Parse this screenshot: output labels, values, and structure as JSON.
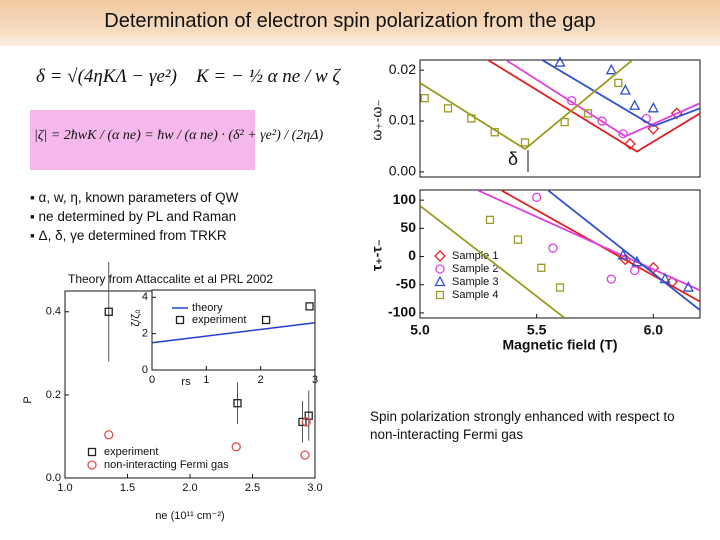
{
  "header": {
    "title": "Determination of electron spin polarization from the gap"
  },
  "formulas": [
    "δ = √(4ηKΛ − γe²)",
    "K = − ½ α ne / w ζ",
    "|ζ| = 2ħwK / (α ne) = ħw / (α ne) · (δ² + γe²) / (2ηΔ)"
  ],
  "bullets": [
    "α, w, η, known parameters of QW",
    "ne determined by PL and Raman",
    "Δ, δ, γe determined from TRKR"
  ],
  "theory_note": "Theory from Attaccalite et al PRL 2002",
  "caption": "Spin polarization strongly enhanced with respect to non-interacting Fermi gas",
  "annotation": "δ",
  "chart_data": [
    {
      "type": "scatter",
      "xlabel": "ne (10¹¹ cm⁻²)",
      "ylabel": "P",
      "xlim": [
        1.0,
        3.0
      ],
      "ylim": [
        0,
        0.45
      ],
      "xticks": [
        {
          "value": 1,
          "label": "1.0"
        },
        {
          "value": 1.5,
          "label": "1.5"
        },
        {
          "value": 2,
          "label": "2.0"
        },
        {
          "value": 2.5,
          "label": "2.5"
        },
        {
          "value": 3,
          "label": "3.0"
        }
      ],
      "yticks": [
        {
          "value": 0,
          "label": "0.0"
        },
        0.2,
        0.4
      ],
      "series": [
        {
          "name": "experiment",
          "color": "#222222",
          "marker": "square",
          "x": [
            1.35,
            2.38,
            2.95,
            2.9
          ],
          "values": [
            0.4,
            0.18,
            0.15,
            0.135
          ],
          "errors": [
            0.12,
            0.05,
            0.06,
            0.05
          ]
        },
        {
          "name": "non-interacting Fermi gas",
          "color": "#e05050",
          "marker": "circle",
          "x": [
            1.35,
            2.37,
            2.92,
            2.93
          ],
          "values": [
            0.104,
            0.075,
            0.055,
            0.135
          ]
        }
      ]
    },
    {
      "type": "scatter",
      "xlabel": "rs",
      "ylabel": "ζ/ζ₀",
      "xlim": [
        0,
        3
      ],
      "ylim": [
        0,
        4.4
      ],
      "xticks": [
        0,
        1,
        2,
        3
      ],
      "yticks": [
        0,
        2,
        4
      ],
      "series": [
        {
          "name": "theory",
          "color": "#2040d0",
          "marker": "line",
          "x": [
            0,
            3
          ],
          "values": [
            1.5,
            2.6
          ]
        },
        {
          "name": "experiment",
          "color": "#222222",
          "marker": "square",
          "x": [
            2.1,
            2.9
          ],
          "values": [
            2.75,
            3.5
          ]
        }
      ]
    },
    {
      "type": "scatter",
      "ylabel": "ω₊-ω₋",
      "xlim": [
        5.0,
        6.2
      ],
      "ylim": [
        -0.001,
        0.022
      ],
      "yticks": [
        {
          "value": 0,
          "label": "0.00"
        },
        {
          "value": 0.01,
          "label": "0.01"
        },
        {
          "value": 0.02,
          "label": "0.02"
        }
      ],
      "series": [
        {
          "color": "#e02020",
          "marker": "diamond",
          "x": [
            5.9,
            6.0,
            6.1
          ],
          "values": [
            0.0055,
            0.0085,
            0.0115
          ],
          "fit_x": [
            5.22,
            5.93,
            6.2
          ],
          "fit_values": [
            0.024,
            0.004,
            0.0115
          ]
        },
        {
          "color": "#e040e0",
          "marker": "circle",
          "x": [
            5.65,
            5.78,
            5.87,
            5.97
          ],
          "values": [
            0.014,
            0.01,
            0.0075,
            0.0105
          ],
          "fit_x": [
            5.3,
            5.88,
            6.2
          ],
          "fit_values": [
            0.024,
            0.007,
            0.0135
          ]
        },
        {
          "color": "#3050d0",
          "marker": "triangle",
          "x": [
            5.6,
            5.82,
            5.88,
            5.92,
            6.0
          ],
          "values": [
            0.0215,
            0.02,
            0.016,
            0.013,
            0.0125
          ],
          "fit_x": [
            5.45,
            6.0,
            6.2
          ],
          "fit_values": [
            0.024,
            0.009,
            0.0125
          ]
        },
        {
          "color": "#9a9a20",
          "marker": "square",
          "x": [
            5.02,
            5.12,
            5.22,
            5.32,
            5.45,
            5.62,
            5.72,
            5.85
          ],
          "values": [
            0.0145,
            0.0125,
            0.0105,
            0.0078,
            0.0058,
            0.0098,
            0.0115,
            0.0175
          ],
          "fit_x": [
            5.0,
            5.45,
            5.95
          ],
          "fit_values": [
            0.0175,
            0.0045,
            0.0235
          ]
        }
      ]
    },
    {
      "type": "scatter",
      "xlabel": "Magnetic field (T)",
      "ylabel": "τ₊-τ₋",
      "xlim": [
        5.0,
        6.2
      ],
      "ylim": [
        -109,
        118
      ],
      "xticks": [
        {
          "value": 5,
          "label": "5.0"
        },
        5.5,
        {
          "value": 6,
          "label": "6.0"
        }
      ],
      "yticks": [
        100,
        50,
        0,
        -50,
        -100
      ],
      "series": [
        {
          "name": "Sample 1",
          "color": "#e02020",
          "marker": "diamond",
          "x": [
            5.88,
            6.0,
            6.08
          ],
          "values": [
            -5,
            -20,
            -45
          ],
          "fit_x": [
            5.35,
            6.2
          ],
          "fit_values": [
            117,
            -80
          ]
        },
        {
          "name": "Sample 2",
          "color": "#e040e0",
          "marker": "circle",
          "x": [
            5.5,
            5.57,
            5.82,
            5.92
          ],
          "values": [
            105,
            15,
            -40,
            -25
          ],
          "fit_x": [
            5.25,
            6.2
          ],
          "fit_values": [
            117,
            -60
          ]
        },
        {
          "name": "Sample 3",
          "color": "#3050d0",
          "marker": "triangle",
          "x": [
            5.87,
            5.93,
            6.05,
            6.15
          ],
          "values": [
            2,
            -10,
            -40,
            -55
          ],
          "fit_x": [
            5.55,
            6.2
          ],
          "fit_values": [
            117,
            -95
          ]
        },
        {
          "name": "Sample 4",
          "color": "#9a9a20",
          "marker": "square",
          "x": [
            5.3,
            5.42,
            5.52,
            5.6
          ],
          "values": [
            65,
            30,
            -20,
            -55
          ],
          "fit_x": [
            5.0,
            5.62
          ],
          "fit_values": [
            90,
            -109
          ]
        }
      ]
    }
  ]
}
